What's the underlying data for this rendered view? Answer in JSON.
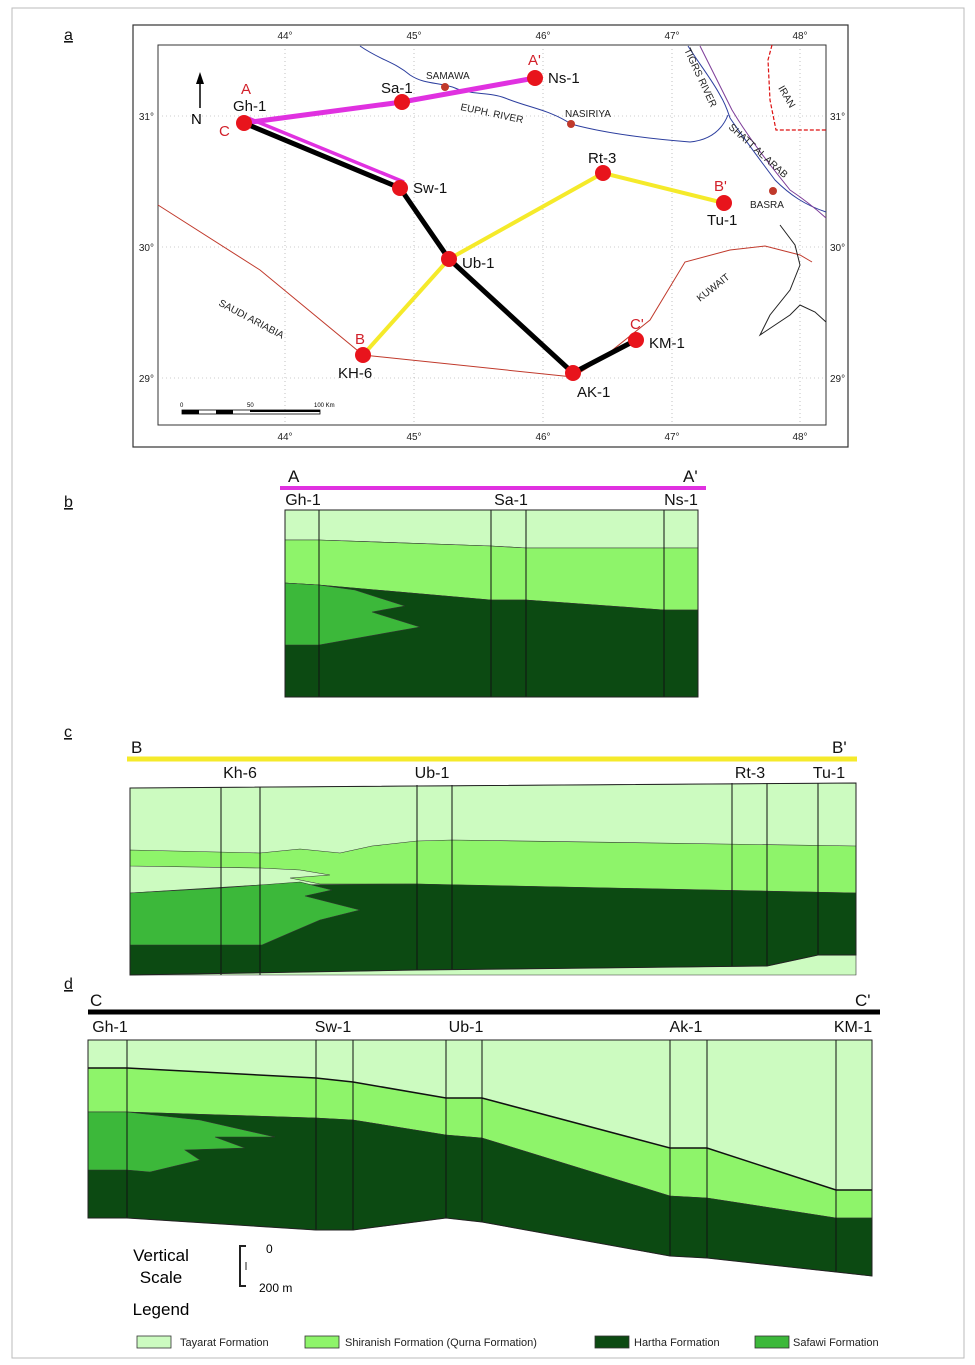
{
  "panels": [
    "a",
    "b",
    "c",
    "d"
  ],
  "map": {
    "lon_labels": [
      "44°",
      "45°",
      "46°",
      "47°",
      "48°"
    ],
    "lat_labels": [
      "31°",
      "30°",
      "29°"
    ],
    "north": "N",
    "wells": [
      "Gh-1",
      "Sa-1",
      "Ns-1",
      "Sw-1",
      "Rt-3",
      "Tu-1",
      "Ub-1",
      "KH-6",
      "AK-1",
      "KM-1"
    ],
    "section_ends": [
      "A",
      "A'",
      "B",
      "B'",
      "C",
      "C'"
    ],
    "places": [
      "SAMAWA",
      "NASIRIYA",
      "BASRA"
    ],
    "features": [
      "EUPH. RIVER",
      "TIGRS RIVER",
      "SHATT AL ARAB",
      "IRAN",
      "KUWAIT",
      "SAUDI ARIABIA"
    ],
    "scale_bar": [
      "0",
      "50",
      "100 Km"
    ]
  },
  "sections": [
    {
      "start": "A",
      "end": "A'",
      "wells": [
        "Gh-1",
        "Sa-1",
        "Ns-1"
      ]
    },
    {
      "start": "B",
      "end": "B'",
      "wells": [
        "Kh-6",
        "Ub-1",
        "Rt-3",
        "Tu-1"
      ]
    },
    {
      "start": "C",
      "end": "C'",
      "wells": [
        "Gh-1",
        "Sw-1",
        "Ub-1",
        "Ak-1",
        "KM-1"
      ]
    }
  ],
  "vertical_scale": {
    "title_lines": [
      "Vertical",
      "Scale"
    ],
    "top": "0",
    "bottom": "200 m"
  },
  "legend": {
    "title": "Legend",
    "items": [
      {
        "label": "Tayarat Formation",
        "color": "#ccfbc0"
      },
      {
        "label": "Shiranish Formation (Qurna Formation)",
        "color": "#8ef46a"
      },
      {
        "label": "Hartha Formation",
        "color": "#0c4a12"
      },
      {
        "label": "Safawi Formation",
        "color": "#3cb83a"
      }
    ]
  }
}
